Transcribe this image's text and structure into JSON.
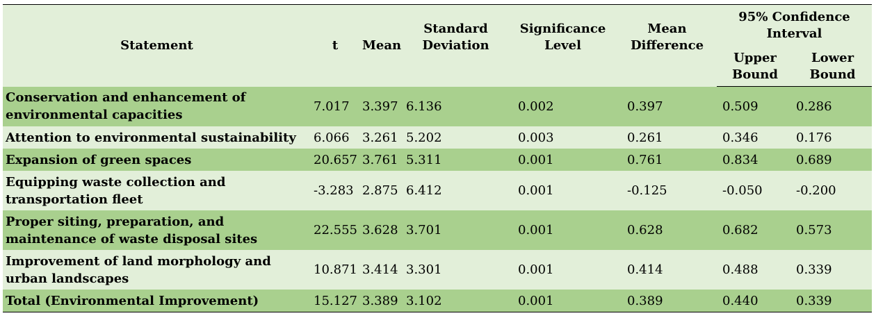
{
  "headers": {
    "statement": "Statement",
    "t": "t",
    "mean": "Mean",
    "std_dev": "Standard Deviation",
    "significance": "Significance Level",
    "mean_diff": "Mean Difference",
    "ci": "95% Confidence Interval",
    "upper": "Upper Bound",
    "lower": "Lower Bound"
  },
  "rows": [
    {
      "statement": "Conservation and enhancement of environmental capacities",
      "t": "7.017",
      "mean": "3.397",
      "sd": "6.136",
      "sig": "0.002",
      "md": "0.397",
      "upper": "0.509",
      "lower": "0.286"
    },
    {
      "statement": "Attention to environmental sustainability",
      "t": "6.066",
      "mean": "3.261",
      "sd": "5.202",
      "sig": "0.003",
      "md": "0.261",
      "upper": "0.346",
      "lower": "0.176"
    },
    {
      "statement": "Expansion of green spaces",
      "t": "20.657",
      "mean": "3.761",
      "sd": "5.311",
      "sig": "0.001",
      "md": "0.761",
      "upper": "0.834",
      "lower": "0.689"
    },
    {
      "statement": "Equipping waste collection and transportation fleet",
      "t": "-3.283",
      "mean": "2.875",
      "sd": "6.412",
      "sig": "0.001",
      "md": "-0.125",
      "upper": "-0.050",
      "lower": "-0.200"
    },
    {
      "statement": "Proper siting, preparation, and maintenance of waste disposal sites",
      "t": "22.555",
      "mean": "3.628",
      "sd": "3.701",
      "sig": "0.001",
      "md": "0.628",
      "upper": "0.682",
      "lower": "0.573"
    },
    {
      "statement": "Improvement of land morphology and urban landscapes",
      "t": "10.871",
      "mean": "3.414",
      "sd": "3.301",
      "sig": "0.001",
      "md": "0.414",
      "upper": "0.488",
      "lower": "0.339"
    },
    {
      "statement": "Total (Environmental Improvement)",
      "t": "15.127",
      "mean": "3.389",
      "sd": "3.102",
      "sig": "0.001",
      "md": "0.389",
      "upper": "0.440",
      "lower": "0.339"
    }
  ],
  "colors": {
    "header_bg": "#e2efd9",
    "dark_row": "#a9d08e",
    "light_row": "#e2efd9"
  }
}
